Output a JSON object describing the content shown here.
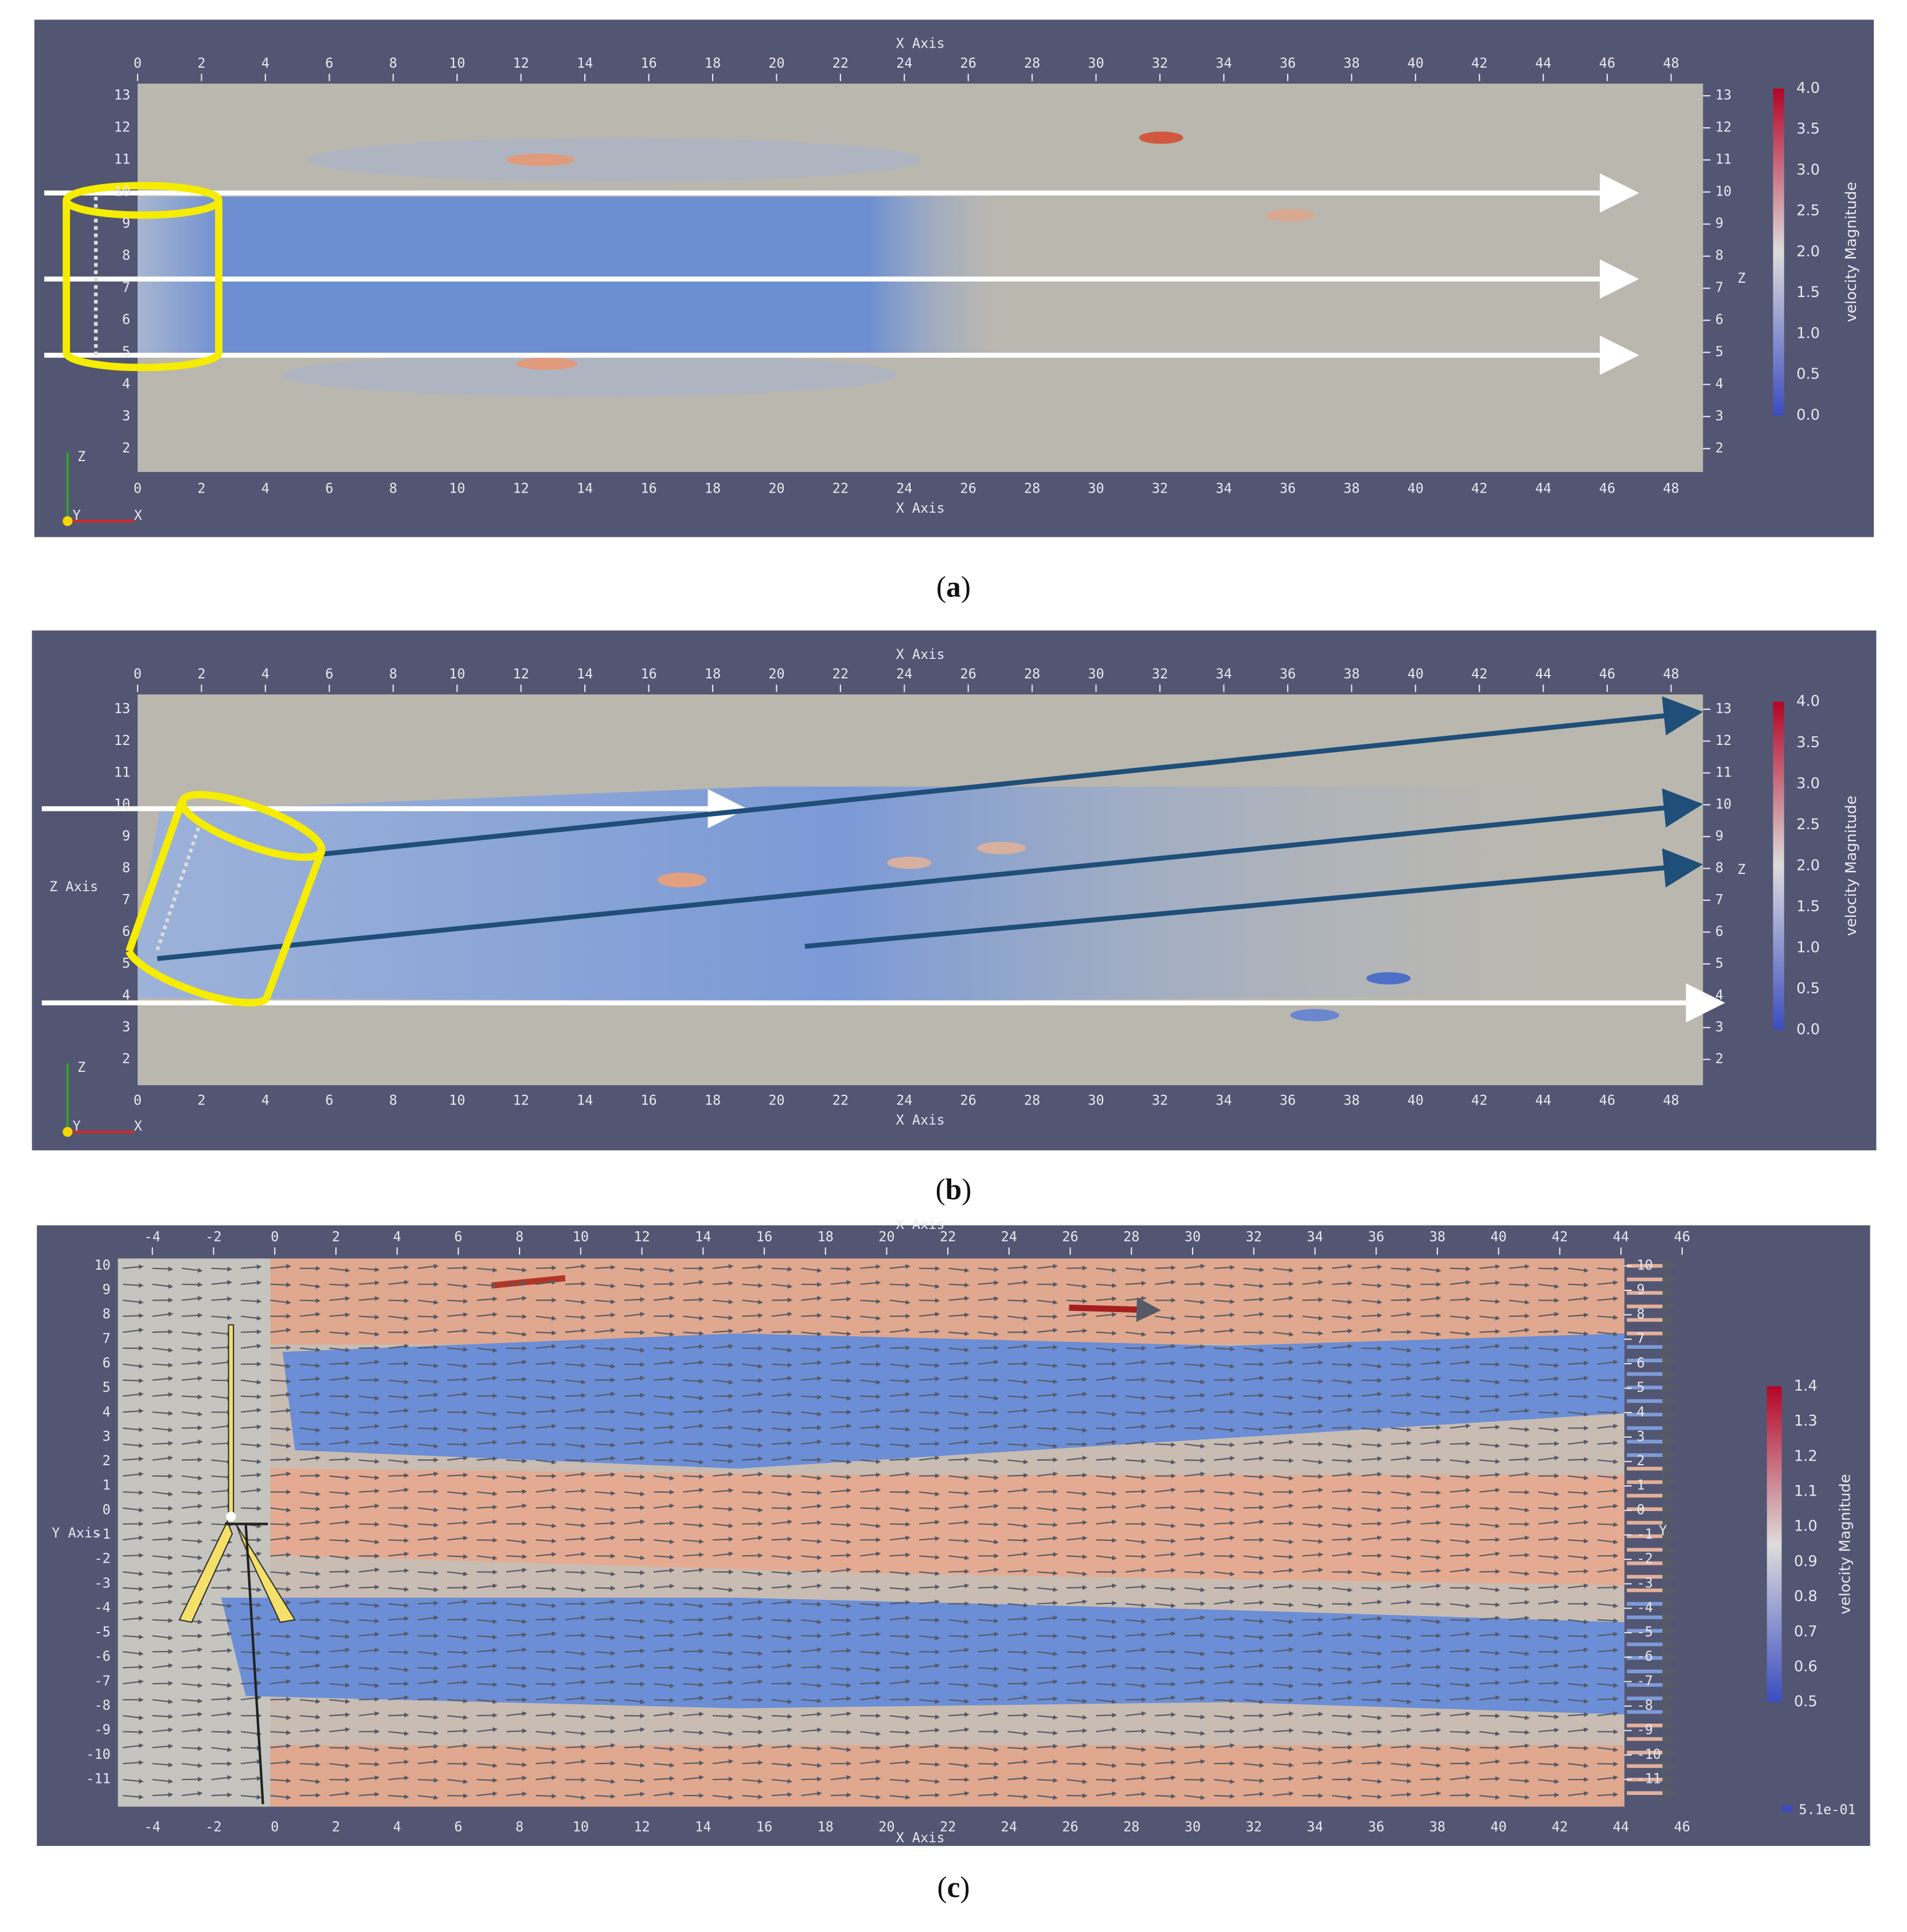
{
  "panels": [
    {
      "caption": {
        "open": "(",
        "letter": "a",
        "close": ")"
      },
      "x_axis_title": "X Axis",
      "x_ticks": [
        "0",
        "2",
        "4",
        "6",
        "8",
        "10",
        "12",
        "14",
        "16",
        "18",
        "20",
        "22",
        "24",
        "26",
        "28",
        "30",
        "32",
        "34",
        "36",
        "38",
        "40",
        "42",
        "44",
        "46",
        "48"
      ],
      "side_ticks": [
        "2",
        "3",
        "4",
        "5",
        "6",
        "7",
        "8",
        "9",
        "10",
        "11",
        "12",
        "13"
      ],
      "side_label": "Z",
      "colorbar": {
        "title": "velocity Magnitude",
        "ticks": [
          "4.0",
          "3.5",
          "3.0",
          "2.5",
          "2.0",
          "1.5",
          "1.0",
          "0.5",
          "0.0"
        ]
      },
      "triad": [
        "Z",
        "Y",
        "X"
      ]
    },
    {
      "caption": {
        "open": "(",
        "letter": "b",
        "close": ")"
      },
      "x_axis_title": "X Axis",
      "left_axis_title": "Z Axis",
      "x_ticks": [
        "0",
        "2",
        "4",
        "6",
        "8",
        "10",
        "12",
        "14",
        "16",
        "18",
        "20",
        "22",
        "24",
        "26",
        "28",
        "30",
        "32",
        "34",
        "36",
        "38",
        "40",
        "42",
        "44",
        "46",
        "48"
      ],
      "side_ticks": [
        "2",
        "3",
        "4",
        "5",
        "6",
        "7",
        "8",
        "9",
        "10",
        "11",
        "12",
        "13"
      ],
      "side_label": "Z",
      "colorbar": {
        "title": "velocity Magnitude",
        "ticks": [
          "4.0",
          "3.5",
          "3.0",
          "2.5",
          "2.0",
          "1.5",
          "1.0",
          "0.5",
          "0.0"
        ]
      },
      "triad": [
        "Z",
        "Y",
        "X"
      ]
    },
    {
      "caption": {
        "open": "(",
        "letter": "c",
        "close": ")"
      },
      "x_axis_title": "X Axis",
      "left_axis_title": "Y Axis",
      "x_ticks": [
        "-4",
        "-2",
        "0",
        "2",
        "4",
        "6",
        "8",
        "10",
        "12",
        "14",
        "16",
        "18",
        "20",
        "22",
        "24",
        "26",
        "28",
        "30",
        "32",
        "34",
        "36",
        "38",
        "40",
        "42",
        "44",
        "46"
      ],
      "side_ticks": [
        "10",
        "9",
        "8",
        "7",
        "6",
        "5",
        "4",
        "3",
        "2",
        "1",
        "0",
        "-1",
        "-2",
        "-3",
        "-4",
        "-5",
        "-6",
        "-7",
        "-8",
        "-9",
        "-10",
        "-11"
      ],
      "side_label": "Y",
      "colorbar": {
        "title": "velocity Magnitude",
        "ticks": [
          "1.4",
          "1.3",
          "1.2",
          "1.1",
          "1.0",
          "0.9",
          "0.8",
          "0.7",
          "0.6",
          "0.5"
        ]
      },
      "glyph_legend": "5.1e-01"
    }
  ]
}
